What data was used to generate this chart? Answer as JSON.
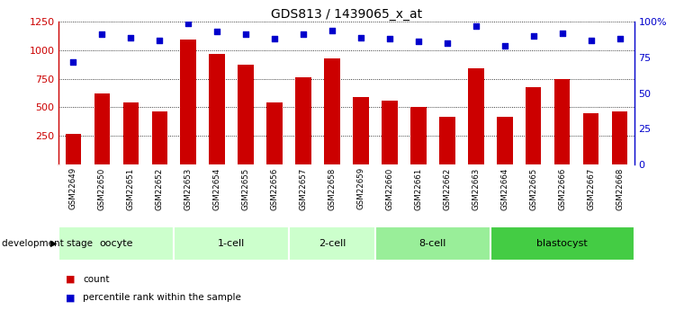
{
  "title": "GDS813 / 1439065_x_at",
  "samples": [
    "GSM22649",
    "GSM22650",
    "GSM22651",
    "GSM22652",
    "GSM22653",
    "GSM22654",
    "GSM22655",
    "GSM22656",
    "GSM22657",
    "GSM22658",
    "GSM22659",
    "GSM22660",
    "GSM22661",
    "GSM22662",
    "GSM22663",
    "GSM22664",
    "GSM22665",
    "GSM22666",
    "GSM22667",
    "GSM22668"
  ],
  "counts": [
    270,
    620,
    540,
    460,
    1090,
    970,
    870,
    540,
    760,
    930,
    590,
    560,
    500,
    420,
    840,
    420,
    680,
    750,
    450,
    460
  ],
  "percentiles": [
    72,
    91,
    89,
    87,
    99,
    93,
    91,
    88,
    91,
    94,
    89,
    88,
    86,
    85,
    97,
    83,
    90,
    92,
    87,
    88
  ],
  "groups": [
    {
      "label": "oocyte",
      "start": 0,
      "end": 4
    },
    {
      "label": "1-cell",
      "start": 4,
      "end": 8
    },
    {
      "label": "2-cell",
      "start": 8,
      "end": 11
    },
    {
      "label": "8-cell",
      "start": 11,
      "end": 15
    },
    {
      "label": "blastocyst",
      "start": 15,
      "end": 20
    }
  ],
  "stage_colors": [
    "#ccffcc",
    "#ccffcc",
    "#ccffcc",
    "#99ee99",
    "#44cc44"
  ],
  "bar_color": "#cc0000",
  "dot_color": "#0000cc",
  "ylim_left": [
    0,
    1250
  ],
  "ylim_right": [
    0,
    100
  ],
  "yticks_left": [
    250,
    500,
    750,
    1000,
    1250
  ],
  "yticks_right": [
    0,
    25,
    50,
    75,
    100
  ],
  "grid_values": [
    250,
    500,
    750,
    1000,
    1250
  ],
  "ylabel_left_color": "#cc0000",
  "ylabel_right_color": "#0000cc",
  "sample_bg_color": "#cccccc",
  "legend_count_label": "count",
  "legend_pct_label": "percentile rank within the sample",
  "dev_stage_label": "development stage"
}
